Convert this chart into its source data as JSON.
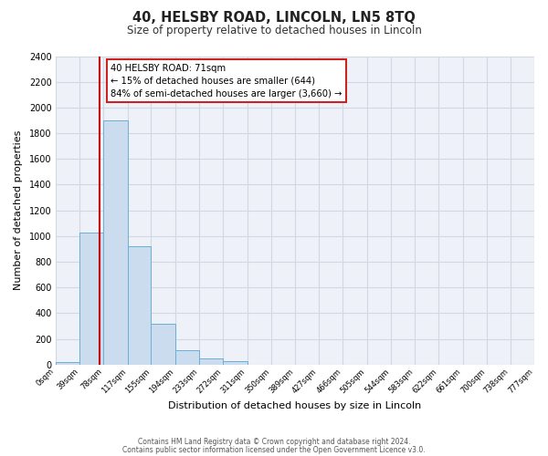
{
  "title": "40, HELSBY ROAD, LINCOLN, LN5 8TQ",
  "subtitle": "Size of property relative to detached houses in Lincoln",
  "xlabel": "Distribution of detached houses by size in Lincoln",
  "ylabel": "Number of detached properties",
  "bar_color": "#ccdcef",
  "bar_edge_color": "#6baed6",
  "plot_bg_color": "#eef2f8",
  "fig_bg_color": "#ffffff",
  "grid_color": "#d0d8e4",
  "bin_edges": [
    0,
    39,
    78,
    117,
    155,
    194,
    233,
    272,
    311,
    350,
    389,
    427,
    466,
    505,
    544,
    583,
    622,
    661,
    700,
    738,
    777
  ],
  "bin_labels": [
    "0sqm",
    "39sqm",
    "78sqm",
    "117sqm",
    "155sqm",
    "194sqm",
    "233sqm",
    "272sqm",
    "311sqm",
    "350sqm",
    "389sqm",
    "427sqm",
    "466sqm",
    "505sqm",
    "544sqm",
    "583sqm",
    "622sqm",
    "661sqm",
    "700sqm",
    "738sqm",
    "777sqm"
  ],
  "bar_heights": [
    20,
    1025,
    1900,
    920,
    320,
    110,
    50,
    25,
    0,
    0,
    0,
    0,
    0,
    0,
    0,
    0,
    0,
    0,
    0,
    0
  ],
  "red_line_x": 71,
  "ylim_max": 2400,
  "yticks": [
    0,
    200,
    400,
    600,
    800,
    1000,
    1200,
    1400,
    1600,
    1800,
    2000,
    2200,
    2400
  ],
  "annotation_title": "40 HELSBY ROAD: 71sqm",
  "annotation_line1": "← 15% of detached houses are smaller (644)",
  "annotation_line2": "84% of semi-detached houses are larger (3,660) →",
  "footer_line1": "Contains HM Land Registry data © Crown copyright and database right 2024.",
  "footer_line2": "Contains public sector information licensed under the Open Government Licence v3.0."
}
